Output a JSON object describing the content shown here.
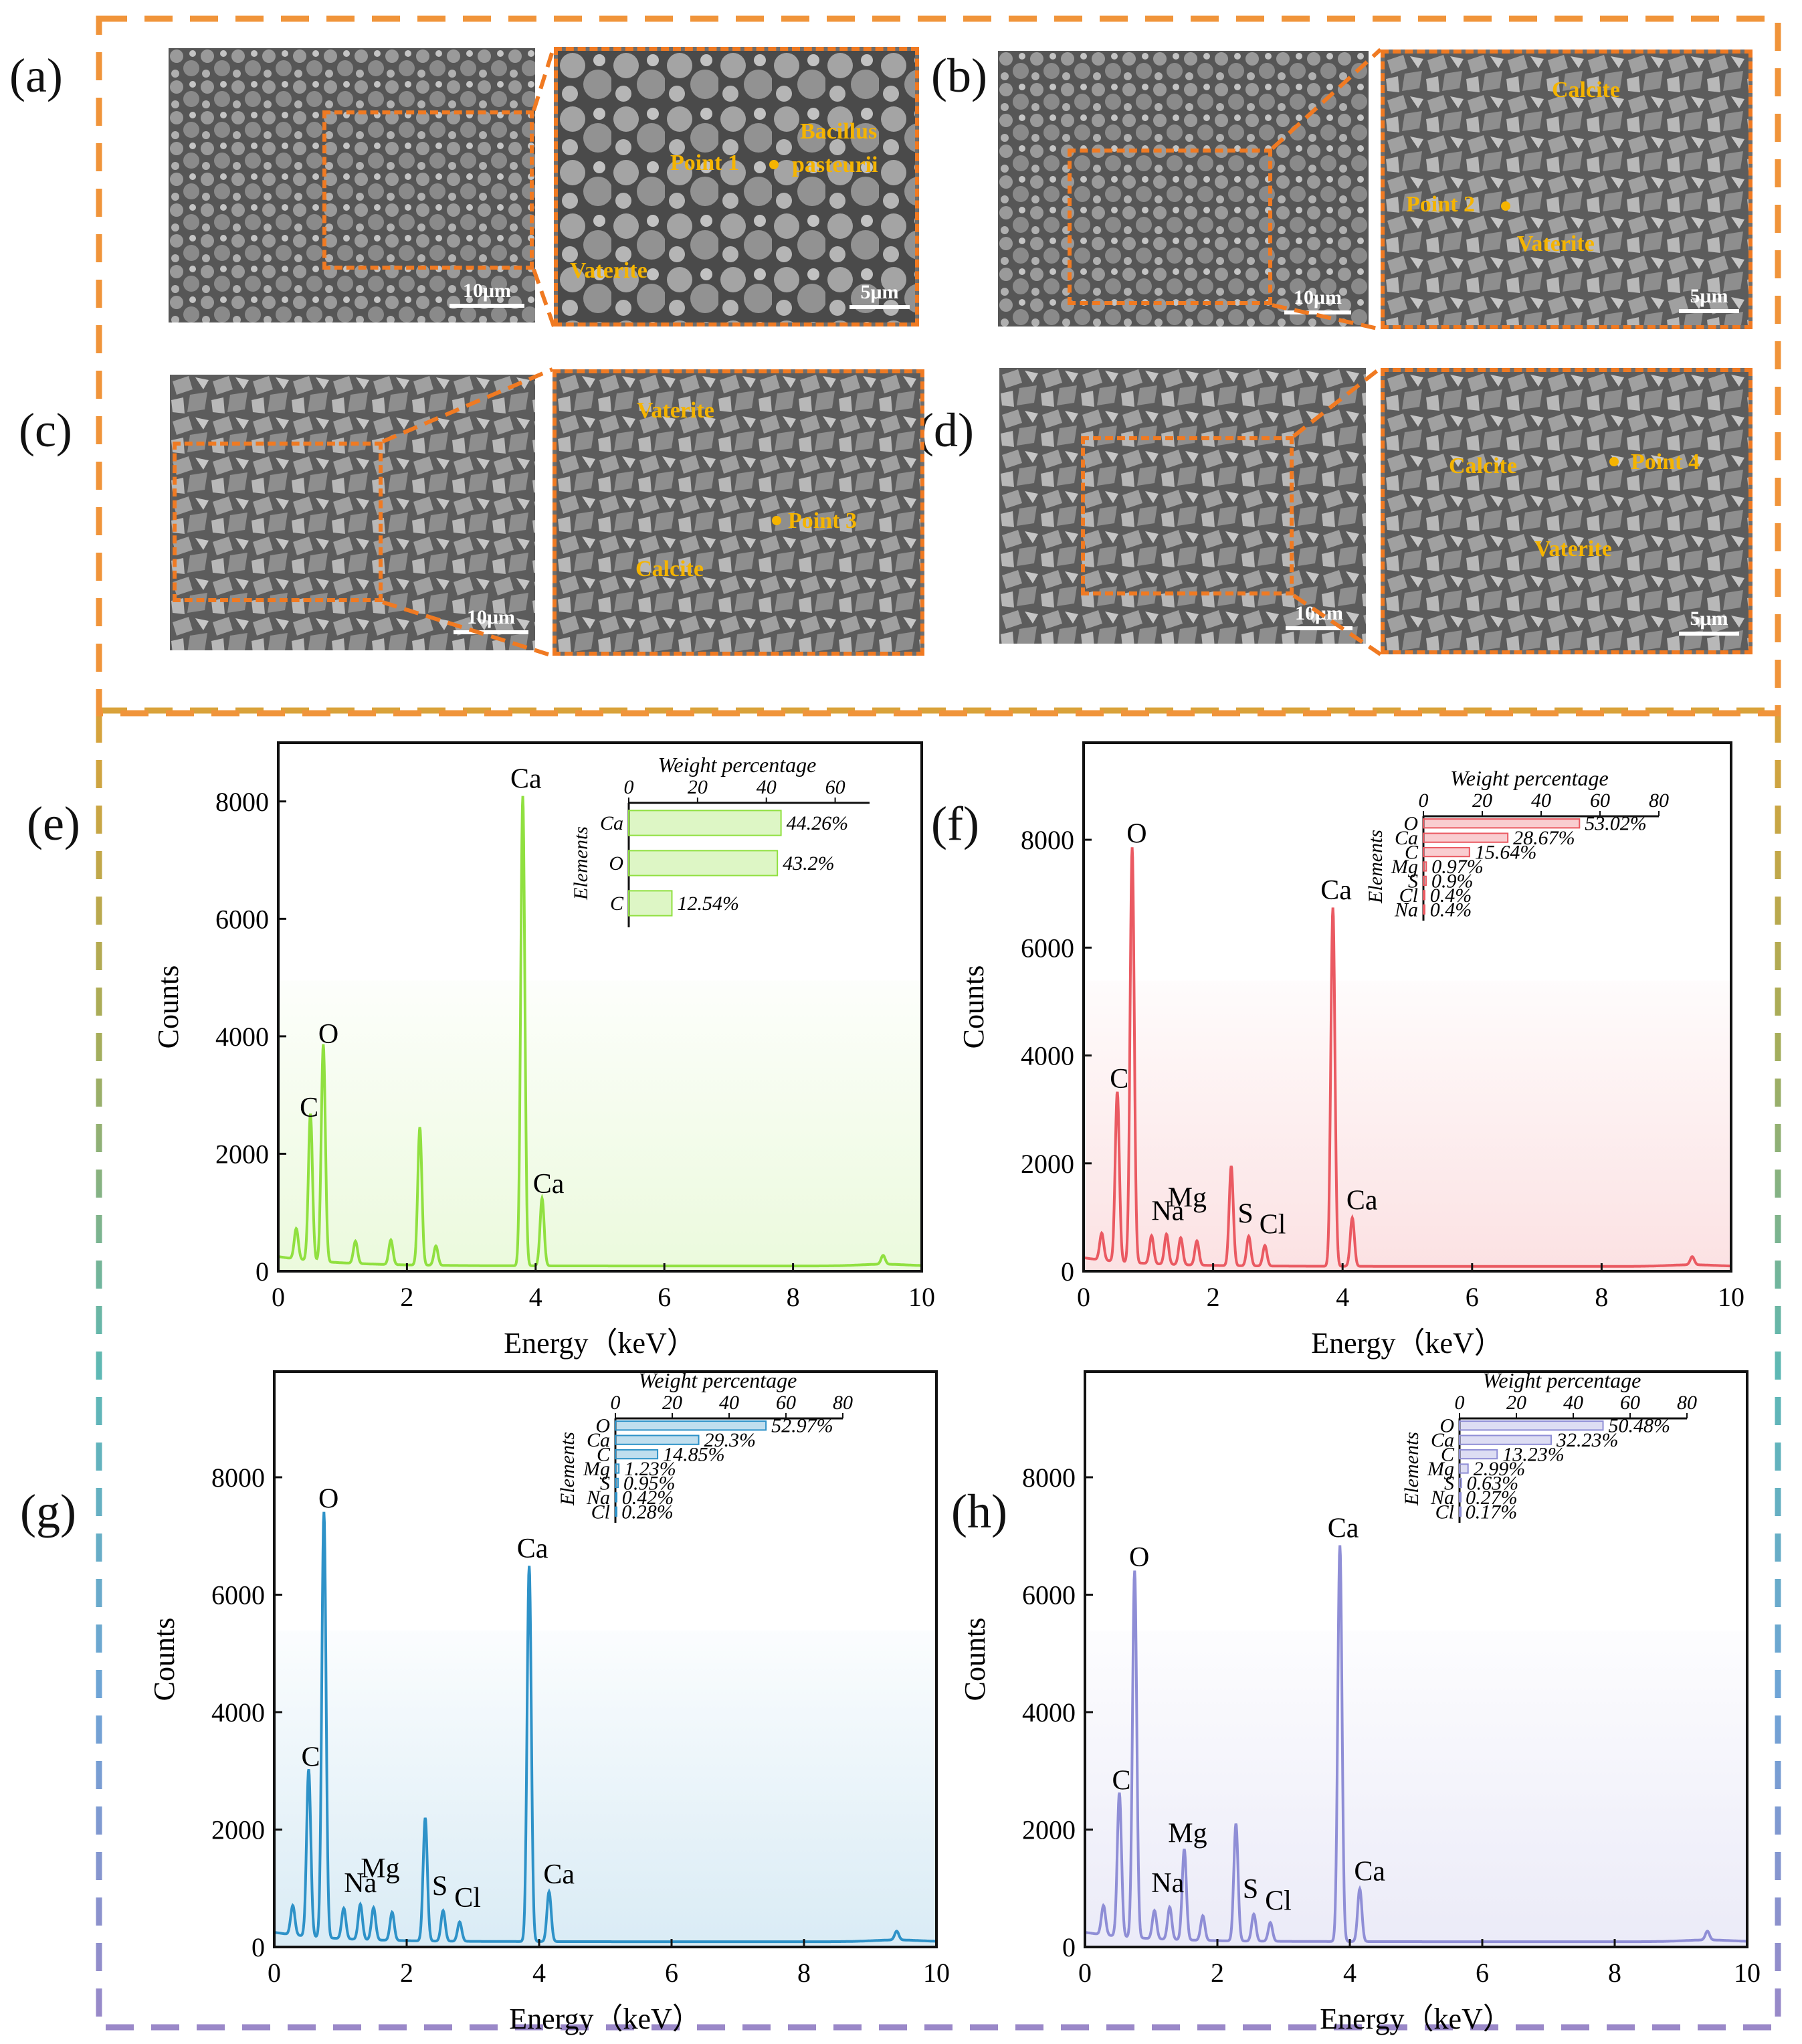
{
  "panels": {
    "a": {
      "letter": "(a)",
      "scale_low": "10μm",
      "scale_high": "5μm",
      "labels": {
        "point": "Point 1",
        "bacillus1": "Bacillus",
        "bacillus2": "pasteurii",
        "vaterite": "Vaterite"
      }
    },
    "b": {
      "letter": "(b)",
      "scale_low": "10μm",
      "scale_high": "5μm",
      "labels": {
        "calcite": "Calcite",
        "point": "Point 2",
        "vaterite": "Vaterite"
      }
    },
    "c": {
      "letter": "(c)",
      "scale_low": "10μm",
      "labels": {
        "vaterite": "Vaterite",
        "point": "Point 3",
        "calcite": "Calcite"
      }
    },
    "d": {
      "letter": "(d)",
      "scale_low": "10μm",
      "scale_high": "5μm",
      "labels": {
        "calcite": "Calcite",
        "point": "Point 4",
        "vaterite": "Vaterite"
      }
    },
    "e": {
      "letter": "(e)"
    },
    "f": {
      "letter": "(f)"
    },
    "g": {
      "letter": "(g)"
    },
    "h": {
      "letter": "(h)"
    }
  },
  "colors": {
    "frame_orange": "#f0943a",
    "e": "#90e040",
    "f": "#ea5a62",
    "g": "#2e92c8",
    "h": "#8f8ed6"
  },
  "chart_data": [
    {
      "id": "e",
      "type": "line",
      "xlabel": "Energy（keV）",
      "ylabel": "Counts",
      "xlim": [
        0,
        10
      ],
      "ylim": [
        0,
        9000
      ],
      "xticks": [
        0,
        2,
        4,
        6,
        8,
        10
      ],
      "yticks": [
        0,
        2000,
        4000,
        6000,
        8000
      ],
      "series": [
        {
          "name": "EDS spectrum",
          "peaks": [
            [
              0.28,
              520
            ],
            [
              0.5,
              2500
            ],
            [
              0.7,
              3700
            ],
            [
              1.2,
              380
            ],
            [
              1.75,
              420
            ],
            [
              2.2,
              2350
            ],
            [
              2.45,
              330
            ],
            [
              3.8,
              8000
            ],
            [
              4.1,
              1150
            ],
            [
              9.4,
              150
            ]
          ]
        }
      ],
      "peak_labels": [
        {
          "text": "C",
          "x": 0.48,
          "y": 2450
        },
        {
          "text": "O",
          "x": 0.78,
          "y": 3700
        },
        {
          "text": "Ca",
          "x": 3.85,
          "y": 8050
        },
        {
          "text": "Ca",
          "x": 4.2,
          "y": 1150
        }
      ],
      "inset": {
        "title": "Weight percentage",
        "ylabel": "Elements",
        "xlim": [
          0,
          70
        ],
        "xticks": [
          0,
          20,
          40,
          60
        ],
        "categories": [
          "Ca",
          "O",
          "C"
        ],
        "values": [
          44.26,
          43.2,
          12.54
        ],
        "value_labels": [
          "44.26%",
          "43.2%",
          "12.54%"
        ]
      }
    },
    {
      "id": "f",
      "type": "line",
      "xlabel": "Energy（keV）",
      "ylabel": "Counts",
      "xlim": [
        0,
        10
      ],
      "ylim": [
        0,
        9800
      ],
      "xticks": [
        0,
        2,
        4,
        6,
        8,
        10
      ],
      "yticks": [
        0,
        2000,
        4000,
        6000,
        8000
      ],
      "series": [
        {
          "name": "EDS spectrum",
          "peaks": [
            [
              0.28,
              500
            ],
            [
              0.52,
              3150
            ],
            [
              0.75,
              7700
            ],
            [
              1.05,
              520
            ],
            [
              1.28,
              560
            ],
            [
              1.5,
              500
            ],
            [
              1.75,
              450
            ],
            [
              2.28,
              1850
            ],
            [
              2.55,
              550
            ],
            [
              2.8,
              380
            ],
            [
              3.85,
              6650
            ],
            [
              4.15,
              900
            ],
            [
              9.4,
              150
            ]
          ]
        }
      ],
      "peak_labels": [
        {
          "text": "C",
          "x": 0.55,
          "y": 3200
        },
        {
          "text": "O",
          "x": 0.82,
          "y": 7750
        },
        {
          "text": "Na",
          "x": 1.3,
          "y": 750
        },
        {
          "text": "Mg",
          "x": 1.6,
          "y": 1000
        },
        {
          "text": "S",
          "x": 2.5,
          "y": 700
        },
        {
          "text": "Cl",
          "x": 2.92,
          "y": 500
        },
        {
          "text": "Ca",
          "x": 3.9,
          "y": 6700
        },
        {
          "text": "Ca",
          "x": 4.3,
          "y": 950
        }
      ],
      "inset": {
        "title": "Weight percentage",
        "ylabel": "Elements",
        "xlim": [
          0,
          80
        ],
        "xticks": [
          0,
          20,
          40,
          60,
          80
        ],
        "categories": [
          "O",
          "Ca",
          "C",
          "Mg",
          "S",
          "Cl",
          "Na"
        ],
        "values": [
          53.02,
          28.67,
          15.64,
          0.97,
          0.9,
          0.4,
          0.4
        ],
        "value_labels": [
          "53.02%",
          "28.67%",
          "15.64%",
          "0.97%",
          "0.9%",
          "0.4%",
          "0.4%"
        ]
      }
    },
    {
      "id": "g",
      "type": "line",
      "xlabel": "Energy（keV）",
      "ylabel": "Counts",
      "xlim": [
        0,
        10
      ],
      "ylim": [
        0,
        9800
      ],
      "xticks": [
        0,
        2,
        4,
        6,
        8,
        10
      ],
      "yticks": [
        0,
        2000,
        4000,
        6000,
        8000
      ],
      "series": [
        {
          "name": "EDS spectrum",
          "peaks": [
            [
              0.28,
              500
            ],
            [
              0.52,
              2850
            ],
            [
              0.75,
              7250
            ],
            [
              1.05,
              520
            ],
            [
              1.3,
              600
            ],
            [
              1.5,
              550
            ],
            [
              1.78,
              480
            ],
            [
              2.28,
              2100
            ],
            [
              2.55,
              520
            ],
            [
              2.8,
              330
            ],
            [
              3.85,
              6400
            ],
            [
              4.15,
              850
            ],
            [
              9.4,
              150
            ]
          ]
        }
      ],
      "peak_labels": [
        {
          "text": "C",
          "x": 0.55,
          "y": 2900
        },
        {
          "text": "O",
          "x": 0.82,
          "y": 7300
        },
        {
          "text": "Na",
          "x": 1.3,
          "y": 750
        },
        {
          "text": "Mg",
          "x": 1.6,
          "y": 1000
        },
        {
          "text": "S",
          "x": 2.5,
          "y": 700
        },
        {
          "text": "Cl",
          "x": 2.92,
          "y": 500
        },
        {
          "text": "Ca",
          "x": 3.9,
          "y": 6450
        },
        {
          "text": "Ca",
          "x": 4.3,
          "y": 900
        }
      ],
      "inset": {
        "title": "Weight percentage",
        "ylabel": "Elements",
        "xlim": [
          0,
          80
        ],
        "xticks": [
          0,
          20,
          40,
          60,
          80
        ],
        "categories": [
          "O",
          "Ca",
          "C",
          "Mg",
          "S",
          "Na",
          "Cl"
        ],
        "values": [
          52.97,
          29.3,
          14.85,
          1.23,
          0.95,
          0.42,
          0.28
        ],
        "value_labels": [
          "52.97%",
          "29.3%",
          "14.85%",
          "1.23%",
          "0.95%",
          "0.42%",
          "0.28%"
        ]
      }
    },
    {
      "id": "h",
      "type": "line",
      "xlabel": "Energy（keV）",
      "ylabel": "Counts",
      "xlim": [
        0,
        10
      ],
      "ylim": [
        0,
        9800
      ],
      "xticks": [
        0,
        2,
        4,
        6,
        8,
        10
      ],
      "yticks": [
        0,
        2000,
        4000,
        6000,
        8000
      ],
      "series": [
        {
          "name": "EDS spectrum",
          "peaks": [
            [
              0.28,
              500
            ],
            [
              0.52,
              2450
            ],
            [
              0.75,
              6250
            ],
            [
              1.05,
              480
            ],
            [
              1.28,
              550
            ],
            [
              1.5,
              1550
            ],
            [
              1.78,
              420
            ],
            [
              2.28,
              2000
            ],
            [
              2.55,
              460
            ],
            [
              2.8,
              320
            ],
            [
              3.85,
              6750
            ],
            [
              4.15,
              900
            ],
            [
              9.4,
              150
            ]
          ]
        }
      ],
      "peak_labels": [
        {
          "text": "C",
          "x": 0.55,
          "y": 2500
        },
        {
          "text": "O",
          "x": 0.82,
          "y": 6300
        },
        {
          "text": "Na",
          "x": 1.25,
          "y": 750
        },
        {
          "text": "Mg",
          "x": 1.55,
          "y": 1600
        },
        {
          "text": "S",
          "x": 2.5,
          "y": 650
        },
        {
          "text": "Cl",
          "x": 2.92,
          "y": 450
        },
        {
          "text": "Ca",
          "x": 3.9,
          "y": 6800
        },
        {
          "text": "Ca",
          "x": 4.3,
          "y": 950
        }
      ],
      "inset": {
        "title": "Weight percentage",
        "ylabel": "Elements",
        "xlim": [
          0,
          80
        ],
        "xticks": [
          0,
          20,
          40,
          60,
          80
        ],
        "categories": [
          "O",
          "Ca",
          "C",
          "Mg",
          "S",
          "Na",
          "Cl"
        ],
        "values": [
          50.48,
          32.23,
          13.23,
          2.99,
          0.63,
          0.27,
          0.17
        ],
        "value_labels": [
          "50.48%",
          "32.23%",
          "13.23%",
          "2.99%",
          "0.63%",
          "0.27%",
          "0.17%"
        ]
      }
    }
  ]
}
